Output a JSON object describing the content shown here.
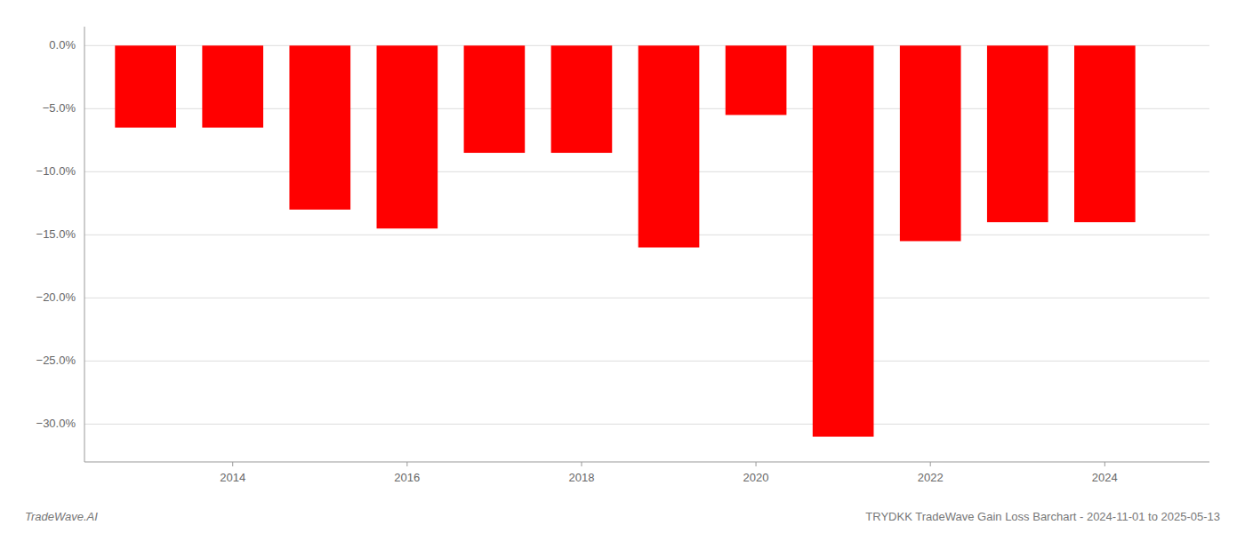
{
  "chart_data": {
    "type": "bar",
    "title": "TRYDKK TradeWave Gain Loss Barchart - 2024-11-01 to 2025-05-13",
    "annotations": [
      "TradeWave.AI"
    ],
    "x": [
      2013,
      2014,
      2015,
      2016,
      2017,
      2018,
      2019,
      2020,
      2021,
      2022,
      2023,
      2024
    ],
    "values": [
      -6.5,
      -6.5,
      -13.0,
      -14.5,
      -8.5,
      -8.5,
      -16.0,
      -5.5,
      -31.0,
      -15.5,
      -14.0,
      -14.0
    ],
    "color": "#ff0000",
    "xlim": [
      2012.3,
      2025.2
    ],
    "xticks": [
      2014,
      2016,
      2018,
      2020,
      2022,
      2024
    ],
    "ylim": [
      -33,
      1.5
    ],
    "yticks": [
      {
        "value": 0.0,
        "label": "0.0%"
      },
      {
        "value": -5.0,
        "label": "−5.0%"
      },
      {
        "value": -10.0,
        "label": "−10.0%"
      },
      {
        "value": -15.0,
        "label": "−15.0%"
      },
      {
        "value": -20.0,
        "label": "−20.0%"
      },
      {
        "value": -25.0,
        "label": "−25.0%"
      },
      {
        "value": -30.0,
        "label": "−30.0%"
      }
    ],
    "grid": true
  }
}
